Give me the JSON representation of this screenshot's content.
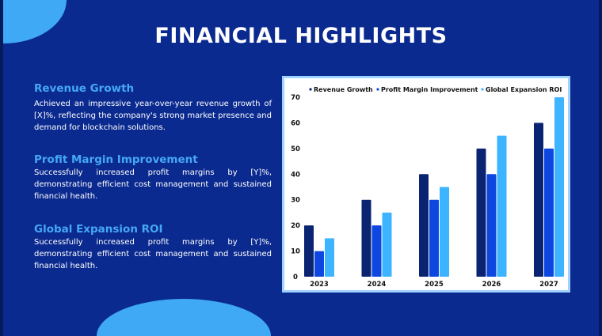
{
  "slide": {
    "title": "FINANCIAL HIGHLIGHTS",
    "sections": [
      {
        "heading": "Revenue Growth",
        "body": "Achieved an impressive year-over-year revenue growth of [X]%, reflecting the company's strong market presence and demand for blockchain solutions."
      },
      {
        "heading": "Profit Margin Improvement",
        "body": "Successfully increased profit margins by [Y]%, demonstrating efficient cost management and sustained financial health."
      },
      {
        "heading": "Global Expansion ROI",
        "body": "Successfully increased profit margins by [Y]%, demonstrating efficient cost management and sustained financial health."
      }
    ]
  },
  "colors": {
    "background": "#0b2a8f",
    "accent": "#3fa9f5",
    "heading": "#45a8f5"
  },
  "chart_data": {
    "type": "bar",
    "categories": [
      "2023",
      "2024",
      "2025",
      "2026",
      "2027"
    ],
    "series": [
      {
        "name": "Revenue Growth",
        "values": [
          20,
          30,
          40,
          50,
          60
        ],
        "color": "#0a2472"
      },
      {
        "name": "Profit Margin Improvement",
        "values": [
          10,
          20,
          30,
          40,
          50
        ],
        "color": "#0d47e0"
      },
      {
        "name": "Global Expansion ROI",
        "values": [
          15,
          25,
          35,
          55,
          70
        ],
        "color": "#3db4ff"
      }
    ],
    "ylim": [
      0,
      70
    ],
    "yticks": [
      0,
      10,
      20,
      30,
      40,
      50,
      60,
      70
    ],
    "grid": false,
    "legend": "top"
  }
}
